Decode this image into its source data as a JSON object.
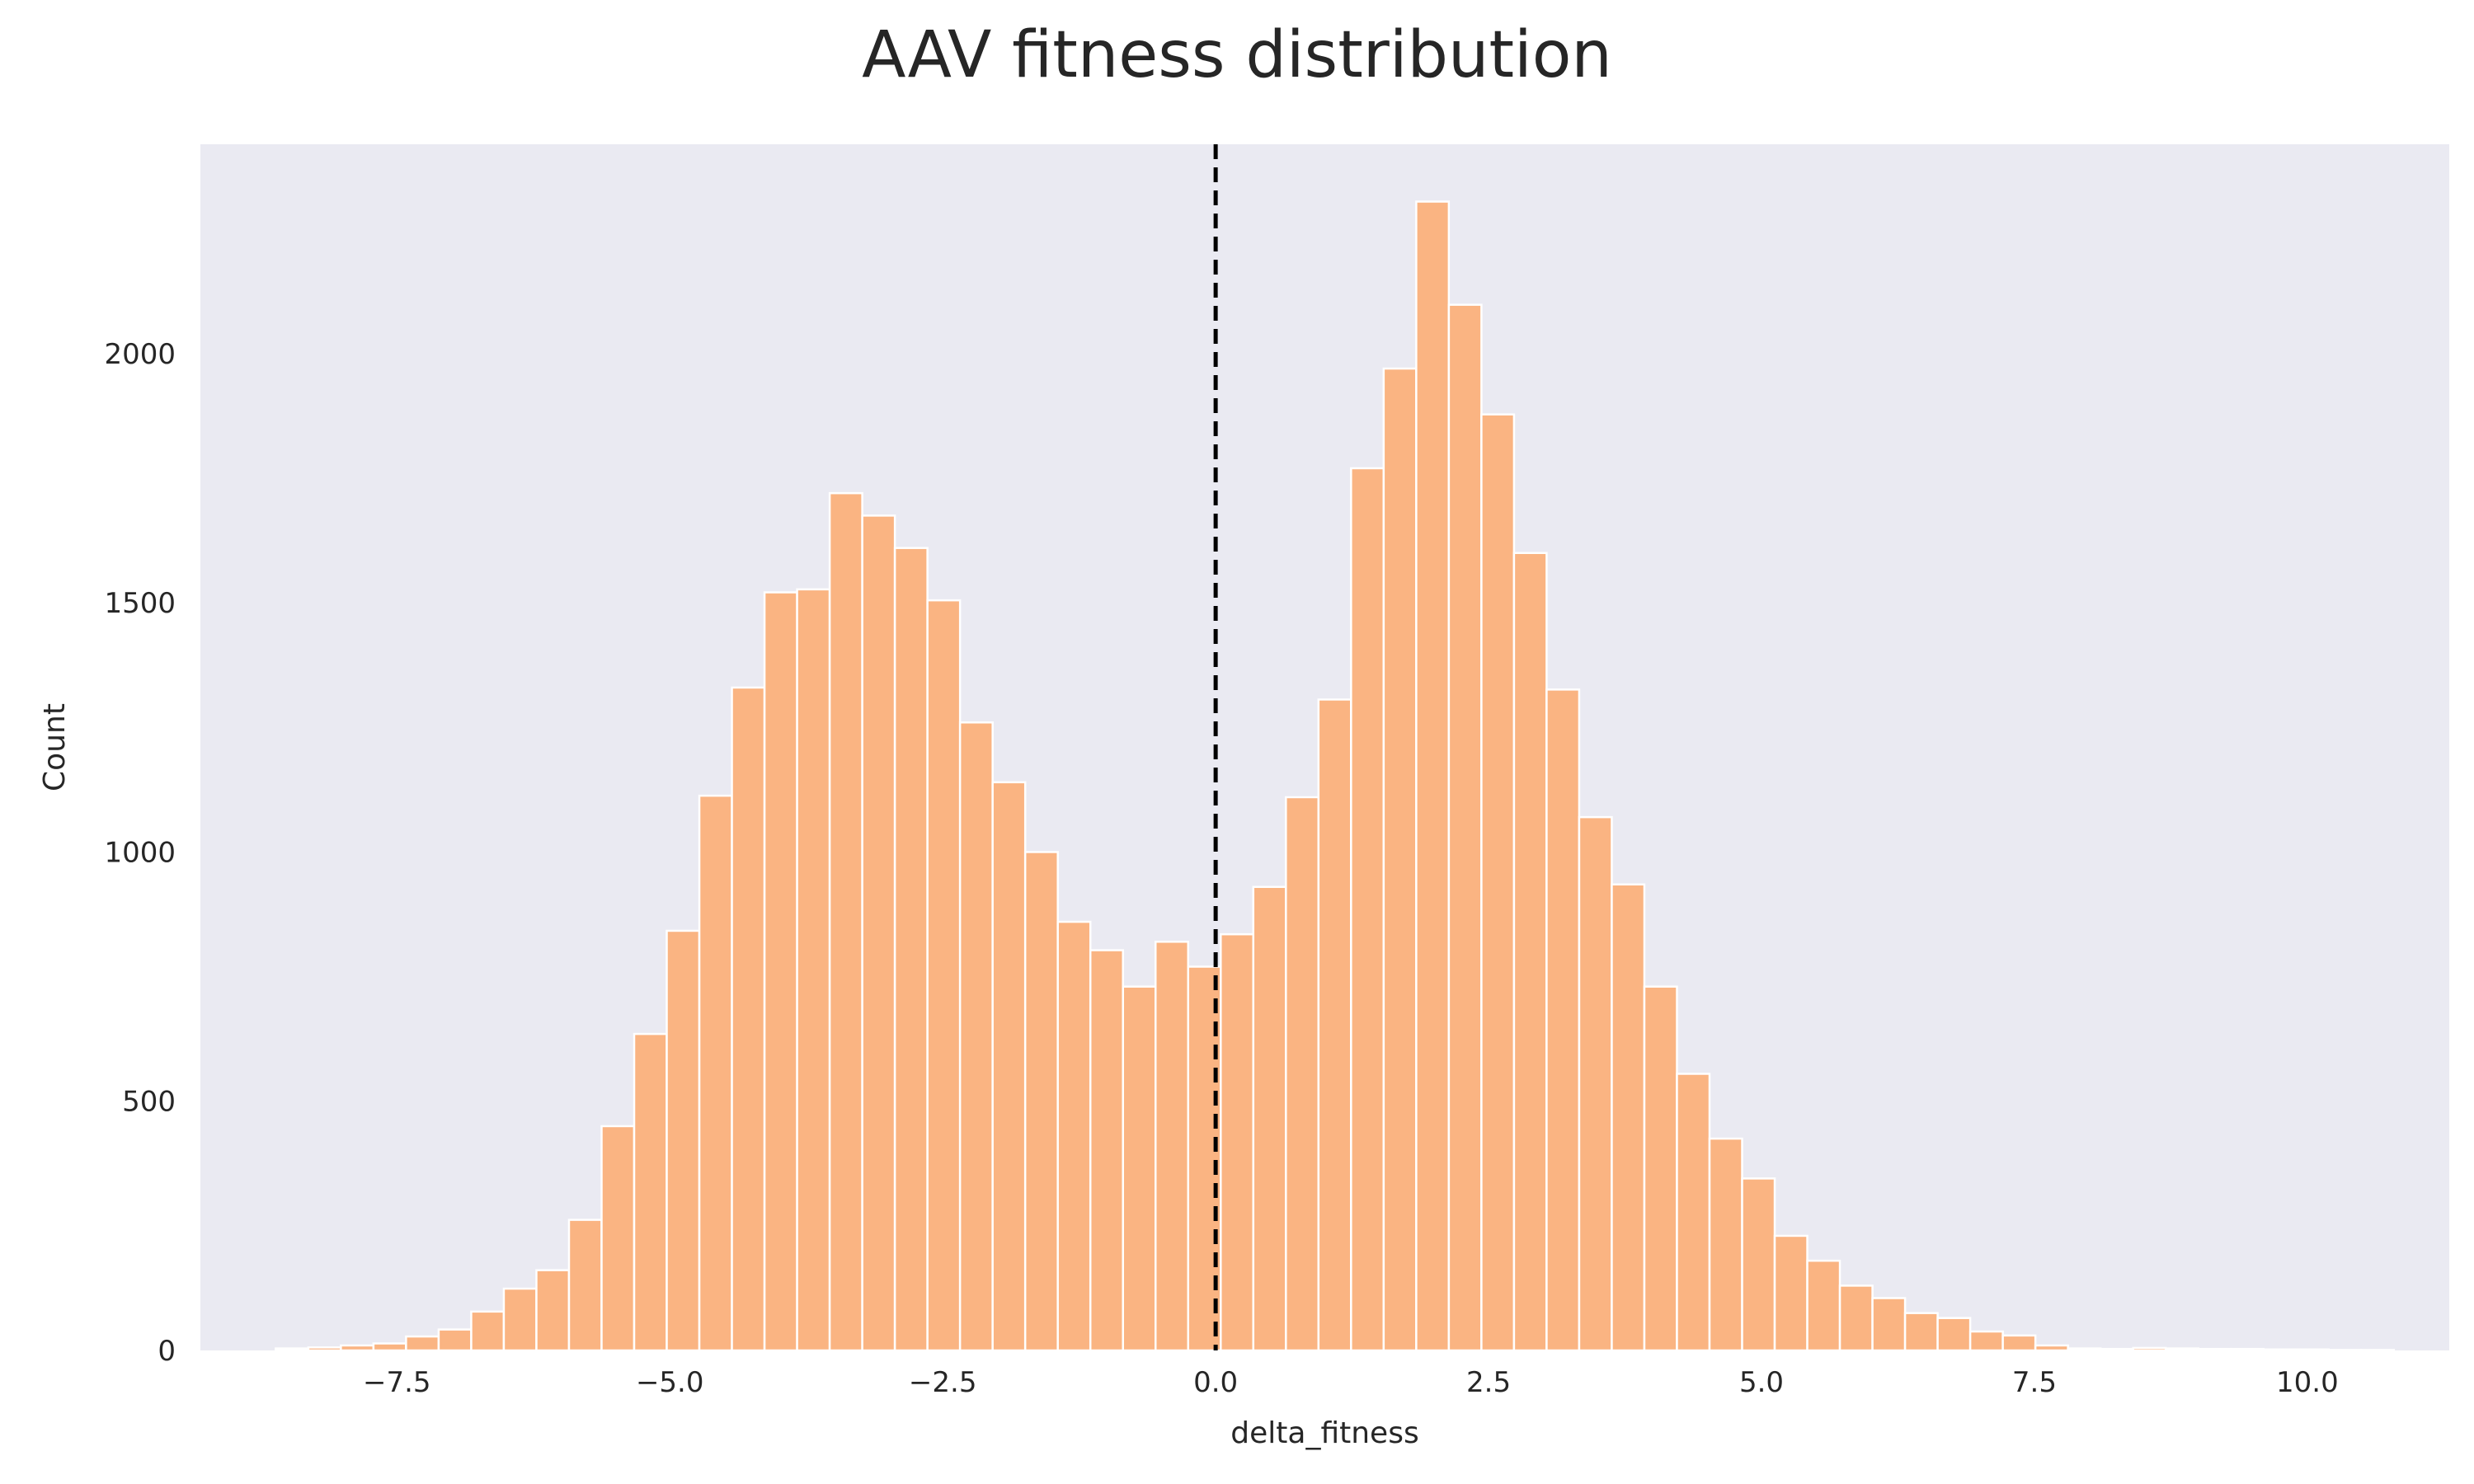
{
  "chart_data": {
    "type": "bar",
    "title": "AAV fitness distribution",
    "xlabel": "delta_fitness",
    "ylabel": "Count",
    "xlim": [
      -9.3,
      11.3
    ],
    "ylim": [
      0,
      2420
    ],
    "xticks": [
      -7.5,
      -5.0,
      -2.5,
      0.0,
      2.5,
      5.0,
      7.5,
      10.0
    ],
    "xtick_labels": [
      "−7.5",
      "−5.0",
      "−2.5",
      "0.0",
      "2.5",
      "5.0",
      "7.5",
      "10.0"
    ],
    "yticks": [
      0,
      500,
      1000,
      1500,
      2000
    ],
    "ytick_labels": [
      "0",
      "500",
      "1000",
      "1500",
      "2000"
    ],
    "grid": false,
    "bin_start": -8.61,
    "bin_width": 0.2985,
    "values": [
      4,
      6,
      10,
      14,
      28,
      42,
      78,
      124,
      161,
      262,
      450,
      635,
      842,
      1113,
      1330,
      1521,
      1527,
      1720,
      1675,
      1610,
      1505,
      1260,
      1140,
      1000,
      860,
      803,
      730,
      820,
      770,
      835,
      930,
      1110,
      1306,
      1770,
      1970,
      2305,
      2098,
      1878,
      1600,
      1326,
      1070,
      935,
      730,
      555,
      425,
      345,
      230,
      180,
      130,
      105,
      75,
      65,
      38,
      30,
      10,
      4,
      3,
      5,
      4,
      3,
      3,
      2,
      2,
      1,
      1
    ],
    "reference_line": {
      "x": 0.0,
      "style": "dashed",
      "color": "#000000"
    },
    "colors": {
      "bar_fill": "#fab482",
      "bar_edge": "#ffffff",
      "axes_bg": "#eaeaf2"
    }
  }
}
